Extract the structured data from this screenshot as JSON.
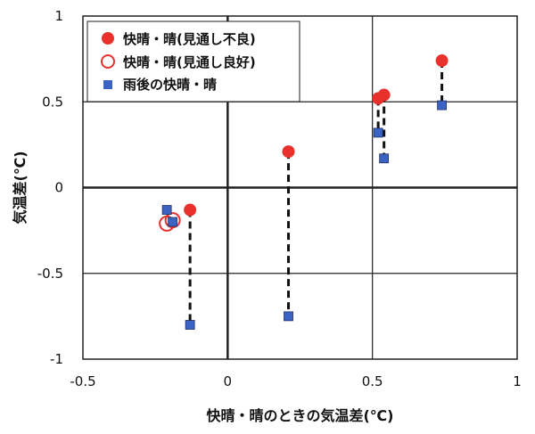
{
  "chart_data": {
    "type": "scatter",
    "xlabel": "快晴・晴のときの気温差(℃)",
    "ylabel": "気温差(℃)",
    "xlim": [
      -0.5,
      1
    ],
    "ylim": [
      -1,
      1
    ],
    "xticks": [
      "-0.5",
      "0",
      "0.5",
      "1"
    ],
    "yticks": [
      "1",
      "0.5",
      "0",
      "-0.5",
      "-1"
    ],
    "grid": true,
    "legend_position": "top-left",
    "colors": {
      "red": "#e8302c",
      "blue": "#3a63c4",
      "dash": "#111111"
    },
    "series": [
      {
        "name": "快晴・晴(見通し不良)",
        "marker": "filled-circle",
        "points": [
          {
            "x": -0.13,
            "y": -0.13
          },
          {
            "x": 0.21,
            "y": 0.21
          },
          {
            "x": 0.52,
            "y": 0.52
          },
          {
            "x": 0.54,
            "y": 0.54
          },
          {
            "x": 0.74,
            "y": 0.74
          }
        ]
      },
      {
        "name": "快晴・晴(見通し良好)",
        "marker": "open-circle",
        "points": [
          {
            "x": -0.21,
            "y": -0.21
          },
          {
            "x": -0.19,
            "y": -0.19
          }
        ]
      },
      {
        "name": "雨後の快晴・晴",
        "marker": "square",
        "points": [
          {
            "x": -0.21,
            "y": -0.13
          },
          {
            "x": -0.19,
            "y": -0.2
          },
          {
            "x": -0.13,
            "y": -0.8
          },
          {
            "x": 0.21,
            "y": -0.75
          },
          {
            "x": 0.52,
            "y": 0.32
          },
          {
            "x": 0.54,
            "y": 0.17
          },
          {
            "x": 0.74,
            "y": 0.48
          }
        ]
      }
    ],
    "connectors": [
      {
        "x": -0.13,
        "y_from": -0.13,
        "y_to": -0.8
      },
      {
        "x": 0.21,
        "y_from": 0.21,
        "y_to": -0.75
      },
      {
        "x": 0.52,
        "y_from": 0.52,
        "y_to": 0.32
      },
      {
        "x": 0.54,
        "y_from": 0.54,
        "y_to": 0.17
      },
      {
        "x": 0.74,
        "y_from": 0.74,
        "y_to": 0.48
      }
    ]
  }
}
